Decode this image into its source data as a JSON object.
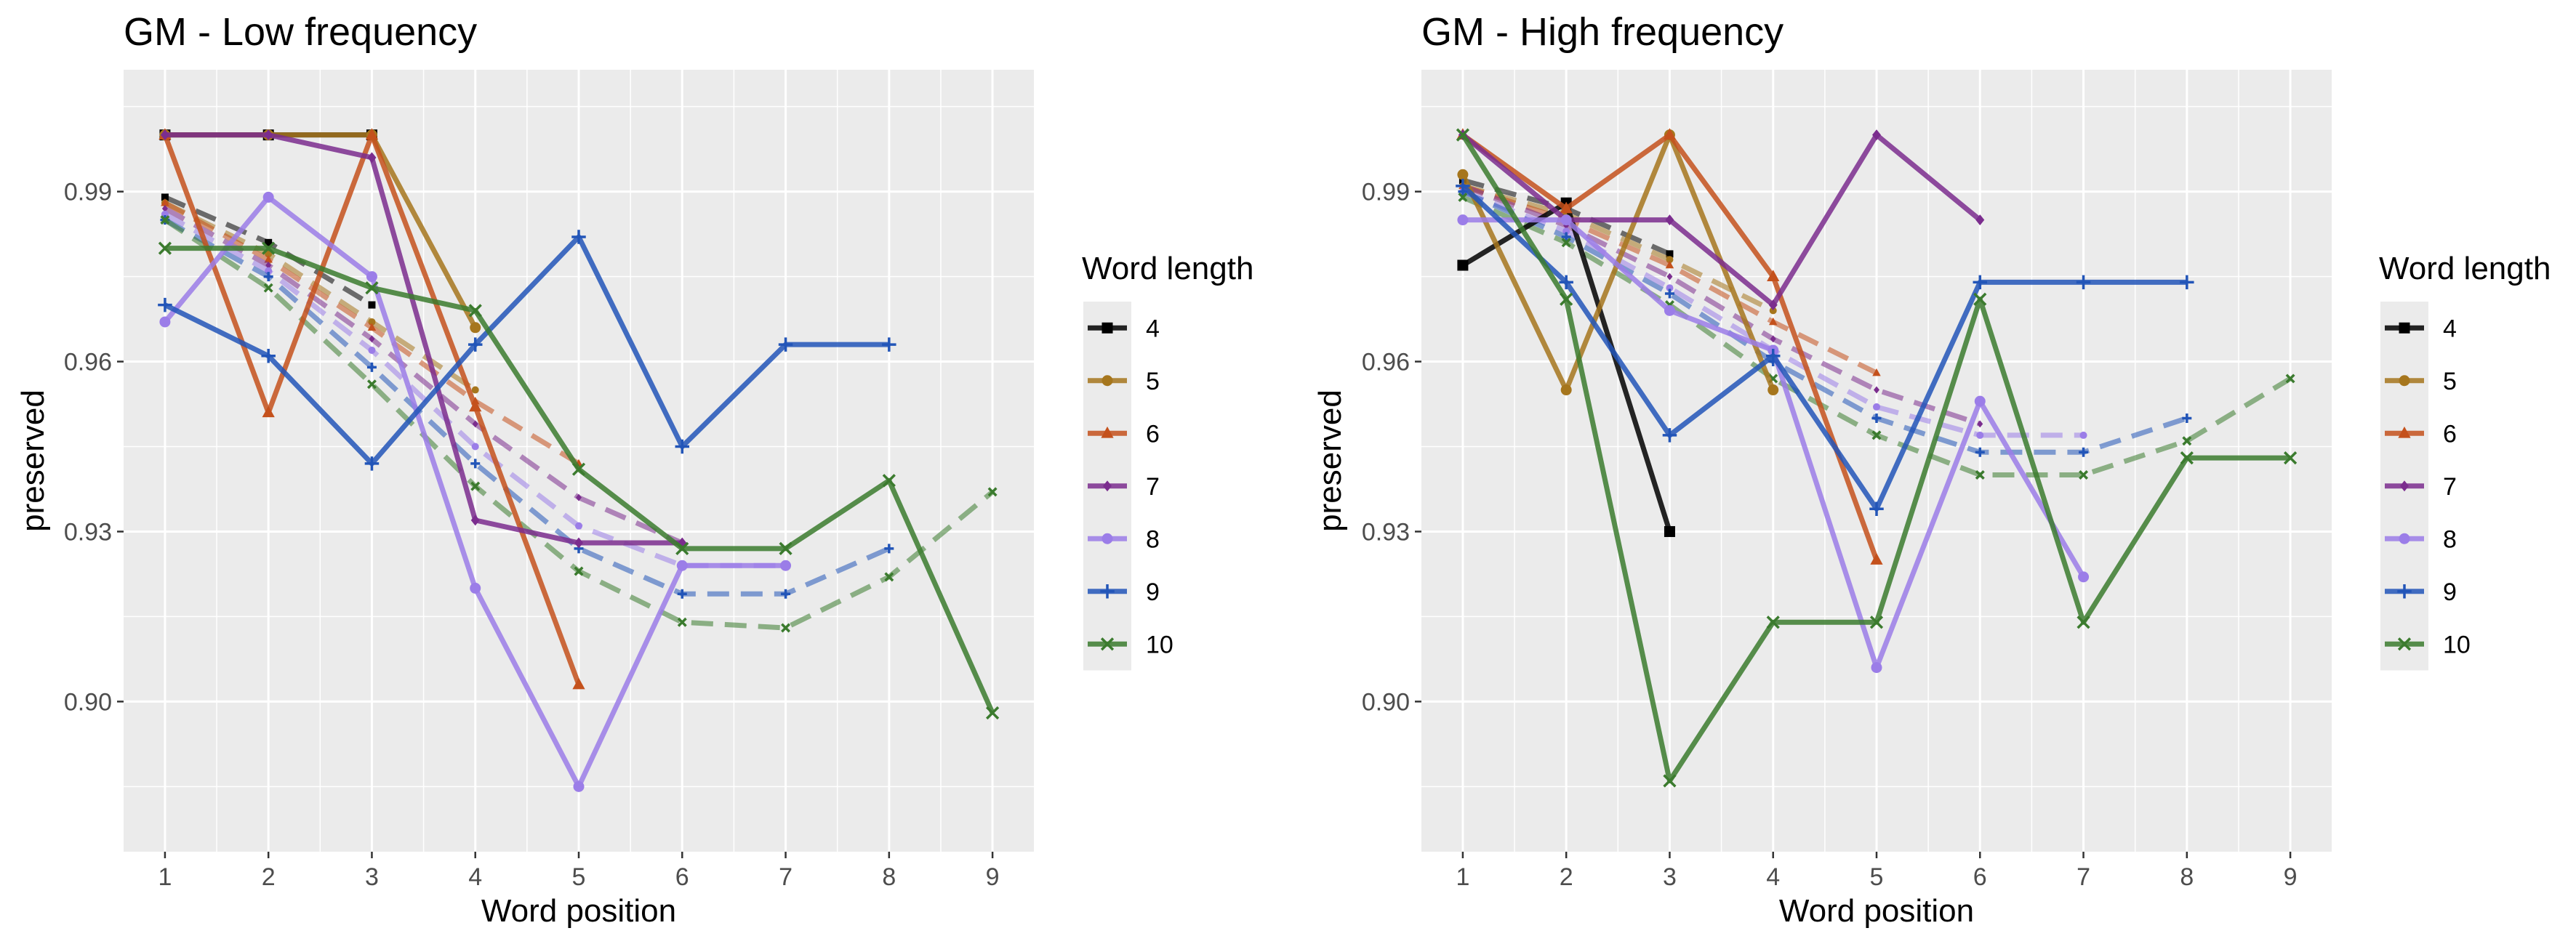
{
  "chart_data": [
    {
      "type": "line",
      "title": "GM - Low frequency",
      "xlabel": "Word position",
      "ylabel": "preserved",
      "xticks": [
        1,
        2,
        3,
        4,
        5,
        6,
        7,
        8,
        9
      ],
      "yticks": [
        0.9,
        0.93,
        0.96,
        0.99
      ],
      "ytick_labels": [
        "0.90",
        "0.93",
        "0.96",
        "0.99"
      ],
      "xlim": [
        0.6,
        9.4
      ],
      "ylim": [
        0.8735,
        1.0115
      ],
      "grid": true,
      "legend_title": "Word length",
      "legend_position": "right",
      "series": [
        {
          "name": "4",
          "color": "#000000",
          "marker": "square",
          "observed": [
            [
              1,
              1.0
            ],
            [
              2,
              1.0
            ],
            [
              3,
              1.0
            ]
          ],
          "fitted": [
            [
              1,
              0.989
            ],
            [
              2,
              0.981
            ],
            [
              3,
              0.97
            ]
          ]
        },
        {
          "name": "5",
          "color": "#a6761d",
          "marker": "circle",
          "observed": [
            [
              1,
              1.0
            ],
            [
              2,
              1.0
            ],
            [
              3,
              1.0
            ],
            [
              4,
              0.966
            ]
          ],
          "fitted": [
            [
              1,
              0.988
            ],
            [
              2,
              0.979
            ],
            [
              3,
              0.967
            ],
            [
              4,
              0.955
            ]
          ]
        },
        {
          "name": "6",
          "color": "#c4511c",
          "marker": "triangle",
          "observed": [
            [
              1,
              1.0
            ],
            [
              2,
              0.951
            ],
            [
              3,
              1.0
            ],
            [
              4,
              0.952
            ],
            [
              5,
              0.903
            ]
          ],
          "fitted": [
            [
              1,
              0.988
            ],
            [
              2,
              0.978
            ],
            [
              3,
              0.966
            ],
            [
              4,
              0.953
            ],
            [
              5,
              0.942
            ]
          ]
        },
        {
          "name": "7",
          "color": "#7b2d8e",
          "marker": "diamond",
          "observed": [
            [
              1,
              1.0
            ],
            [
              2,
              1.0
            ],
            [
              3,
              0.996
            ],
            [
              4,
              0.932
            ],
            [
              5,
              0.928
            ],
            [
              6,
              0.928
            ]
          ],
          "fitted": [
            [
              1,
              0.987
            ],
            [
              2,
              0.977
            ],
            [
              3,
              0.964
            ],
            [
              4,
              0.949
            ],
            [
              5,
              0.936
            ],
            [
              6,
              0.928
            ]
          ]
        },
        {
          "name": "8",
          "color": "#9b7de8",
          "marker": "circle",
          "observed": [
            [
              1,
              0.967
            ],
            [
              2,
              0.989
            ],
            [
              3,
              0.975
            ],
            [
              4,
              0.92
            ],
            [
              5,
              0.885
            ],
            [
              6,
              0.924
            ],
            [
              7,
              0.924
            ]
          ],
          "fitted": [
            [
              1,
              0.986
            ],
            [
              2,
              0.976
            ],
            [
              3,
              0.962
            ],
            [
              4,
              0.945
            ],
            [
              5,
              0.931
            ],
            [
              6,
              0.924
            ],
            [
              7,
              0.924
            ]
          ]
        },
        {
          "name": "9",
          "color": "#2255b8",
          "marker": "plus",
          "observed": [
            [
              1,
              0.97
            ],
            [
              2,
              0.961
            ],
            [
              3,
              0.942
            ],
            [
              4,
              0.963
            ],
            [
              5,
              0.982
            ],
            [
              6,
              0.945
            ],
            [
              7,
              0.963
            ],
            [
              8,
              0.963
            ]
          ],
          "fitted": [
            [
              1,
              0.985
            ],
            [
              2,
              0.975
            ],
            [
              3,
              0.959
            ],
            [
              4,
              0.942
            ],
            [
              5,
              0.927
            ],
            [
              6,
              0.919
            ],
            [
              7,
              0.919
            ],
            [
              8,
              0.927
            ]
          ]
        },
        {
          "name": "10",
          "color": "#3b7b2e",
          "marker": "x",
          "observed": [
            [
              1,
              0.98
            ],
            [
              2,
              0.98
            ],
            [
              3,
              0.973
            ],
            [
              4,
              0.969
            ],
            [
              5,
              0.941
            ],
            [
              6,
              0.927
            ],
            [
              7,
              0.927
            ],
            [
              8,
              0.939
            ],
            [
              9,
              0.898
            ]
          ],
          "fitted": [
            [
              1,
              0.985
            ],
            [
              2,
              0.973
            ],
            [
              3,
              0.956
            ],
            [
              4,
              0.938
            ],
            [
              5,
              0.923
            ],
            [
              6,
              0.914
            ],
            [
              7,
              0.913
            ],
            [
              8,
              0.922
            ],
            [
              9,
              0.937
            ]
          ]
        }
      ]
    },
    {
      "type": "line",
      "title": "GM - High frequency",
      "xlabel": "Word position",
      "ylabel": "preserved",
      "xticks": [
        1,
        2,
        3,
        4,
        5,
        6,
        7,
        8,
        9
      ],
      "yticks": [
        0.9,
        0.93,
        0.96,
        0.99
      ],
      "ytick_labels": [
        "0.90",
        "0.93",
        "0.96",
        "0.99"
      ],
      "xlim": [
        0.6,
        9.4
      ],
      "ylim": [
        0.8735,
        1.0115
      ],
      "grid": true,
      "legend_title": "Word length",
      "legend_position": "right",
      "series": [
        {
          "name": "4",
          "color": "#000000",
          "marker": "square",
          "observed": [
            [
              1,
              0.977
            ],
            [
              2,
              0.988
            ],
            [
              3,
              0.93
            ]
          ],
          "fitted": [
            [
              1,
              0.992
            ],
            [
              2,
              0.987
            ],
            [
              3,
              0.979
            ]
          ]
        },
        {
          "name": "5",
          "color": "#a6761d",
          "marker": "circle",
          "observed": [
            [
              1,
              0.993
            ],
            [
              2,
              0.955
            ],
            [
              3,
              1.0
            ],
            [
              4,
              0.955
            ]
          ],
          "fitted": [
            [
              1,
              0.991
            ],
            [
              2,
              0.986
            ],
            [
              3,
              0.978
            ],
            [
              4,
              0.969
            ]
          ]
        },
        {
          "name": "6",
          "color": "#c4511c",
          "marker": "triangle",
          "observed": [
            [
              1,
              1.0
            ],
            [
              2,
              0.987
            ],
            [
              3,
              1.0
            ],
            [
              4,
              0.975
            ],
            [
              5,
              0.925
            ]
          ],
          "fitted": [
            [
              1,
              0.991
            ],
            [
              2,
              0.985
            ],
            [
              3,
              0.977
            ],
            [
              4,
              0.967
            ],
            [
              5,
              0.958
            ]
          ]
        },
        {
          "name": "7",
          "color": "#7b2d8e",
          "marker": "diamond",
          "observed": [
            [
              1,
              1.0
            ],
            [
              2,
              0.985
            ],
            [
              3,
              0.985
            ],
            [
              4,
              0.97
            ],
            [
              5,
              1.0
            ],
            [
              6,
              0.985
            ]
          ],
          "fitted": [
            [
              1,
              0.991
            ],
            [
              2,
              0.984
            ],
            [
              3,
              0.975
            ],
            [
              4,
              0.964
            ],
            [
              5,
              0.955
            ],
            [
              6,
              0.949
            ]
          ]
        },
        {
          "name": "8",
          "color": "#9b7de8",
          "marker": "circle",
          "observed": [
            [
              1,
              0.985
            ],
            [
              2,
              0.985
            ],
            [
              3,
              0.969
            ],
            [
              4,
              0.962
            ],
            [
              5,
              0.906
            ],
            [
              6,
              0.953
            ],
            [
              7,
              0.922
            ]
          ],
          "fitted": [
            [
              1,
              0.99
            ],
            [
              2,
              0.983
            ],
            [
              3,
              0.973
            ],
            [
              4,
              0.962
            ],
            [
              5,
              0.952
            ],
            [
              6,
              0.947
            ],
            [
              7,
              0.947
            ]
          ]
        },
        {
          "name": "9",
          "color": "#2255b8",
          "marker": "plus",
          "observed": [
            [
              1,
              0.991
            ],
            [
              2,
              0.974
            ],
            [
              3,
              0.947
            ],
            [
              4,
              0.961
            ],
            [
              5,
              0.934
            ],
            [
              6,
              0.974
            ],
            [
              7,
              0.974
            ],
            [
              8,
              0.974
            ]
          ],
          "fitted": [
            [
              1,
              0.99
            ],
            [
              2,
              0.982
            ],
            [
              3,
              0.972
            ],
            [
              4,
              0.96
            ],
            [
              5,
              0.95
            ],
            [
              6,
              0.944
            ],
            [
              7,
              0.944
            ],
            [
              8,
              0.95
            ]
          ]
        },
        {
          "name": "10",
          "color": "#3b7b2e",
          "marker": "x",
          "observed": [
            [
              1,
              1.0
            ],
            [
              2,
              0.971
            ],
            [
              3,
              0.886
            ],
            [
              4,
              0.914
            ],
            [
              5,
              0.914
            ],
            [
              6,
              0.971
            ],
            [
              7,
              0.914
            ],
            [
              8,
              0.943
            ],
            [
              9,
              0.943
            ]
          ],
          "fitted": [
            [
              1,
              0.989
            ],
            [
              2,
              0.981
            ],
            [
              3,
              0.97
            ],
            [
              4,
              0.957
            ],
            [
              5,
              0.947
            ],
            [
              6,
              0.94
            ],
            [
              7,
              0.94
            ],
            [
              8,
              0.946
            ],
            [
              9,
              0.957
            ]
          ]
        }
      ]
    }
  ]
}
